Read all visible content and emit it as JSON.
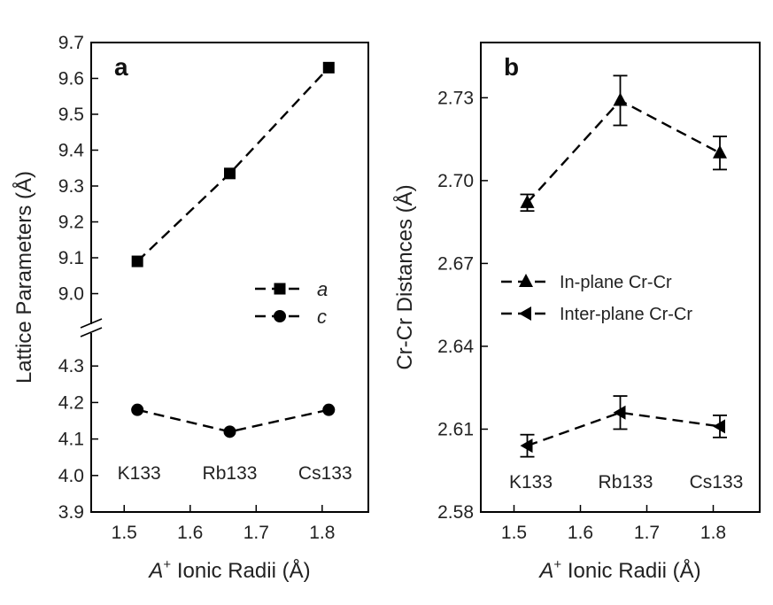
{
  "chart_data": [
    {
      "type": "line",
      "panel_label": "a",
      "x_title_italic": "A",
      "x_title_sup": "+",
      "x_title_rest": " Ionic Radii (Å)",
      "ylabel": "Lattice Parameters (Å)",
      "xlim": [
        1.45,
        1.87
      ],
      "xticks": [
        "1.5",
        "1.6",
        "1.7",
        "1.8"
      ],
      "ylim_top": [
        8.9,
        9.7
      ],
      "yticks_top": [
        "9.0",
        "9.1",
        "9.2",
        "9.3",
        "9.4",
        "9.5",
        "9.6",
        "9.7"
      ],
      "ylim_bottom": [
        3.9,
        4.4
      ],
      "yticks_bottom": [
        "3.9",
        "4.0",
        "4.1",
        "4.2",
        "4.3"
      ],
      "axis_break": true,
      "categories": [
        "K133",
        "Rb133",
        "Cs133"
      ],
      "x": [
        1.52,
        1.66,
        1.81
      ],
      "series": [
        {
          "name": "a",
          "marker": "square",
          "values": [
            9.09,
            9.335,
            9.63
          ]
        },
        {
          "name": "c",
          "marker": "circle",
          "values": [
            4.18,
            4.12,
            4.18
          ]
        }
      ],
      "legend_position": "center-right"
    },
    {
      "type": "line",
      "panel_label": "b",
      "x_title_italic": "A",
      "x_title_sup": "+",
      "x_title_rest": " Ionic Radii (Å)",
      "ylabel": "Cr-Cr Distances (Å)",
      "xlim": [
        1.45,
        1.87
      ],
      "xticks": [
        "1.5",
        "1.6",
        "1.7",
        "1.8"
      ],
      "ylim": [
        2.58,
        2.75
      ],
      "yticks": [
        "2.58",
        "2.61",
        "2.64",
        "2.67",
        "2.70",
        "2.73"
      ],
      "categories": [
        "K133",
        "Rb133",
        "Cs133"
      ],
      "x": [
        1.52,
        1.66,
        1.81
      ],
      "series": [
        {
          "name": "In-plane Cr-Cr",
          "marker": "triangle-up",
          "values": [
            2.692,
            2.729,
            2.71
          ],
          "errors": [
            0.003,
            0.009,
            0.006
          ]
        },
        {
          "name": "Inter-plane Cr-Cr",
          "marker": "triangle-left",
          "values": [
            2.604,
            2.616,
            2.611
          ],
          "errors": [
            0.004,
            0.006,
            0.004
          ]
        }
      ],
      "legend_position": "center"
    }
  ]
}
